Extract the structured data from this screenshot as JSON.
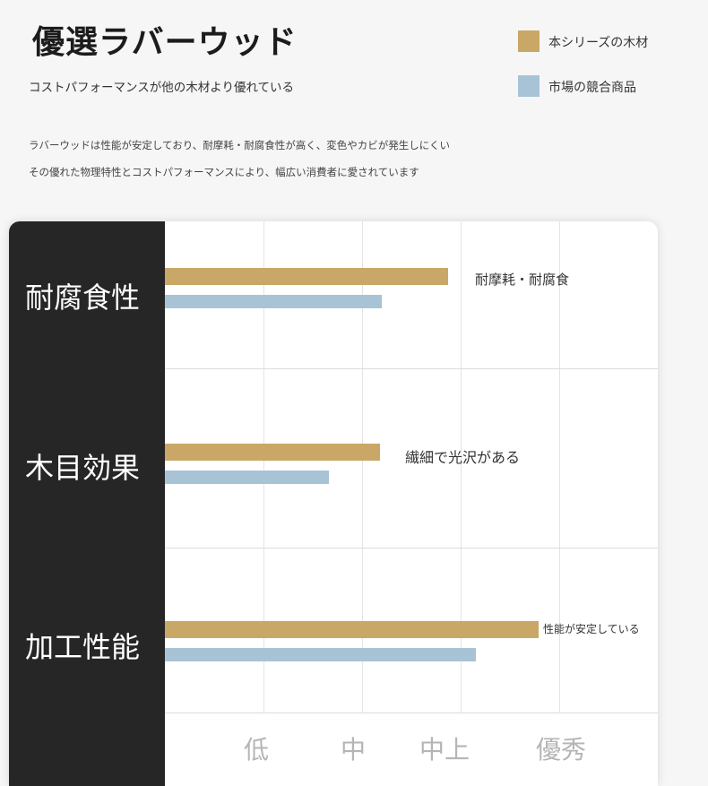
{
  "header": {
    "title": "優選ラバーウッド",
    "subtitle": "コストパフォーマンスが他の木材より優れている",
    "description_line1": "ラバーウッドは性能が安定しており、耐摩耗・耐腐食性が高く、変色やカビが発生しにくい",
    "description_line2": "その優れた物理特性とコストパフォーマンスにより、幅広い消費者に愛されています"
  },
  "colors": {
    "series_1": "#c9a766",
    "series_2": "#a8c3d6",
    "sidebar": "#262626"
  },
  "chart_data": {
    "type": "bar",
    "orientation": "horizontal",
    "categories": [
      "耐腐食性",
      "木目効果",
      "加工性能"
    ],
    "x_tick_labels": [
      "低",
      "中",
      "中上",
      "優秀"
    ],
    "xlim": [
      0,
      5
    ],
    "grid": "vertical",
    "legend_position": "top-right",
    "series": [
      {
        "name": "本シリーズの木材",
        "values": [
          2.87,
          2.18,
          3.79
        ]
      },
      {
        "name": "市場の競合商品",
        "values": [
          2.2,
          1.66,
          3.15
        ]
      }
    ],
    "annotations": [
      "耐摩耗・耐腐食",
      "繊細で光沢がある",
      "性能が安定している"
    ]
  }
}
